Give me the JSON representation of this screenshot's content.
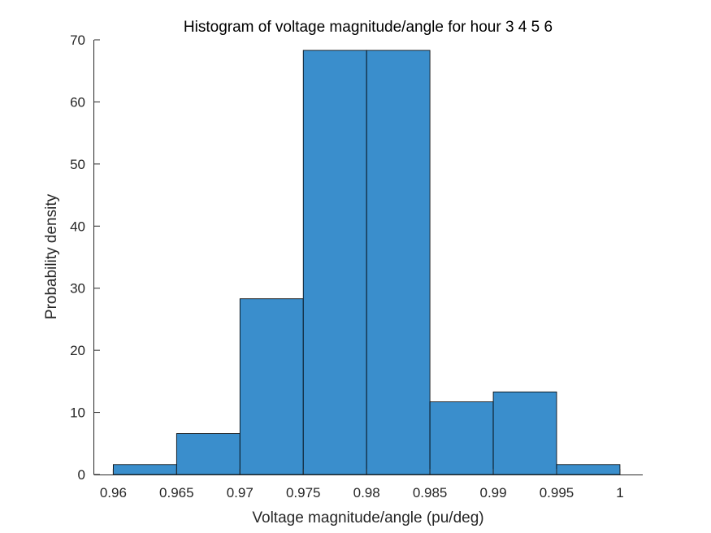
{
  "chart_data": {
    "type": "bar",
    "title": "Histogram of voltage magnitude/angle for hour 3  4  5  6",
    "xlabel": "Voltage magnitude/angle (pu/deg)",
    "ylabel": "Probability density",
    "bin_edges": [
      0.96,
      0.965,
      0.97,
      0.975,
      0.98,
      0.985,
      0.99,
      0.995,
      1.0
    ],
    "values": [
      1.6,
      6.6,
      28.3,
      68.3,
      68.3,
      11.7,
      13.3,
      1.6
    ],
    "xlim": [
      0.9585,
      1.0018
    ],
    "ylim": [
      0,
      70
    ],
    "xticks": [
      0.96,
      0.965,
      0.97,
      0.975,
      0.98,
      0.985,
      0.99,
      0.995,
      1.0
    ],
    "xtick_labels": [
      "0.96",
      "0.965",
      "0.97",
      "0.975",
      "0.98",
      "0.985",
      "0.99",
      "0.995",
      "1"
    ],
    "yticks": [
      0,
      10,
      20,
      30,
      40,
      50,
      60,
      70
    ],
    "ytick_labels": [
      "0",
      "10",
      "20",
      "30",
      "40",
      "50",
      "60",
      "70"
    ],
    "bar_color": "#3a8ecc",
    "edge_color": "#000000",
    "axis_color": "#262626",
    "grid": false,
    "box": false
  }
}
